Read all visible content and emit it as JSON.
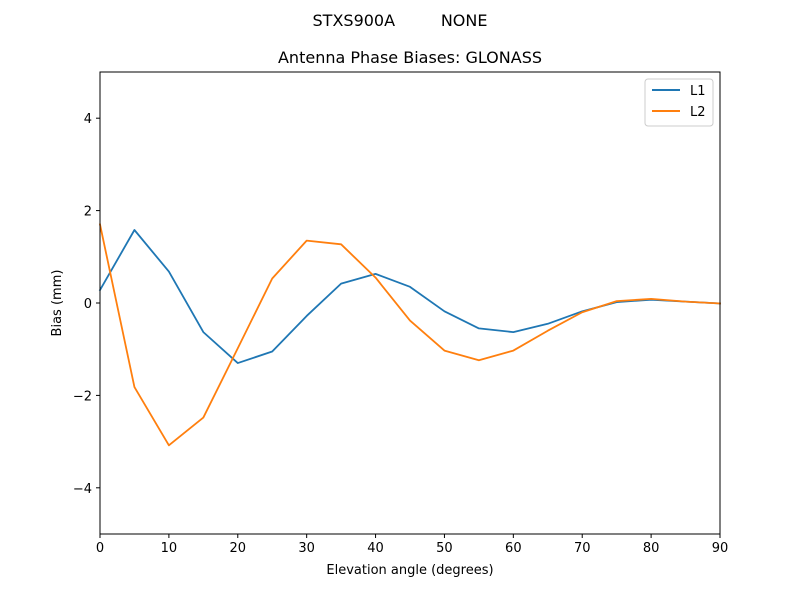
{
  "figure": {
    "suptitle": "STXS900A         NONE"
  },
  "chart_data": {
    "type": "line",
    "title": "Antenna Phase Biases: GLONASS",
    "xlabel": "Elevation angle (degrees)",
    "ylabel": "Bias (mm)",
    "xlim": [
      0,
      90
    ],
    "ylim": [
      -5,
      5
    ],
    "xticks": [
      0,
      10,
      20,
      30,
      40,
      50,
      60,
      70,
      80,
      90
    ],
    "yticks": [
      -4,
      -2,
      0,
      2,
      4
    ],
    "grid": false,
    "legend_position": "top-right",
    "x": [
      0,
      5,
      10,
      15,
      20,
      25,
      30,
      35,
      40,
      45,
      50,
      55,
      60,
      65,
      70,
      75,
      80,
      85,
      90
    ],
    "series": [
      {
        "name": "L1",
        "color": "#1f77b4",
        "values": [
          0.28,
          1.58,
          0.68,
          -0.63,
          -1.3,
          -1.05,
          -0.28,
          0.42,
          0.63,
          0.35,
          -0.18,
          -0.55,
          -0.63,
          -0.45,
          -0.18,
          0.02,
          0.07,
          0.03,
          -0.01
        ]
      },
      {
        "name": "L2",
        "color": "#ff7f0e",
        "values": [
          1.7,
          -1.82,
          -3.08,
          -2.48,
          -0.98,
          0.53,
          1.35,
          1.27,
          0.55,
          -0.38,
          -1.03,
          -1.24,
          -1.03,
          -0.6,
          -0.2,
          0.04,
          0.09,
          0.03,
          -0.01
        ]
      }
    ]
  }
}
